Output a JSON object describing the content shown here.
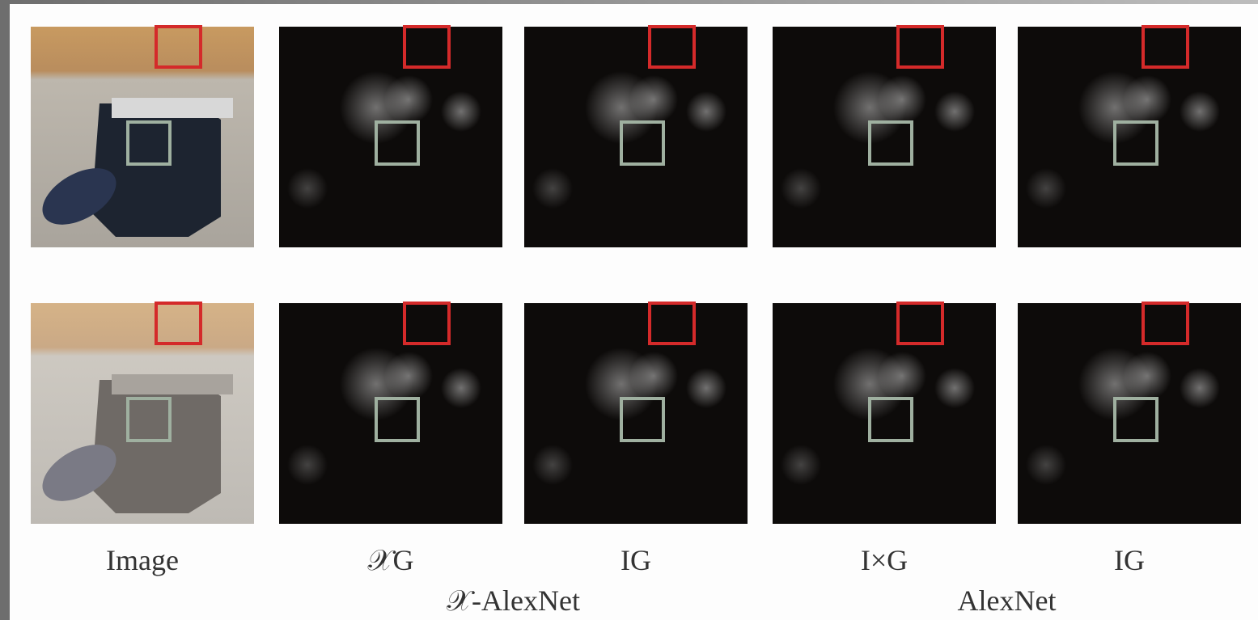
{
  "columns": [
    {
      "label": "Image"
    },
    {
      "label": "𝒳G"
    },
    {
      "label": "IG"
    },
    {
      "label": "I×G"
    },
    {
      "label": "IG"
    }
  ],
  "groups": [
    {
      "label": "𝒳-AlexNet"
    },
    {
      "label": "AlexNet"
    }
  ]
}
